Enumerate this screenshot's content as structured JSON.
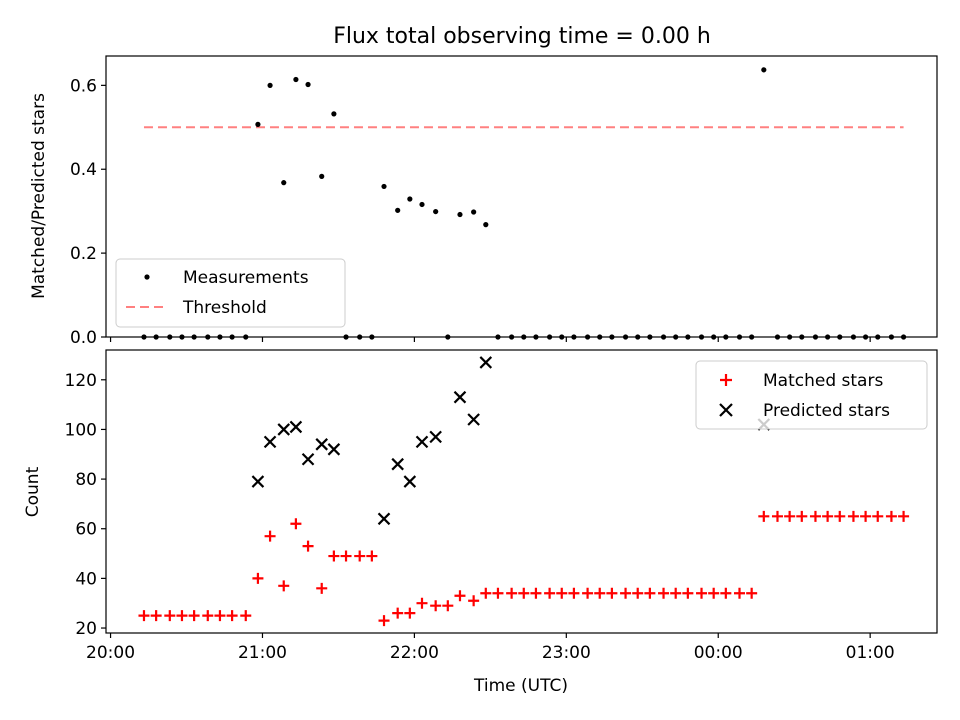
{
  "figure": {
    "title": "Flux total observing time = 0.00 h",
    "xlabel": "Time (UTC)",
    "x_ticks": [
      "20:00",
      "21:00",
      "22:00",
      "23:00",
      "00:00",
      "01:00"
    ],
    "x_tick_hours": [
      20,
      21,
      22,
      23,
      24,
      25
    ]
  },
  "chart_data": [
    {
      "type": "scatter",
      "title": "Flux total observing time = 0.00 h",
      "xlabel": "",
      "ylabel": "Matched/Predicted stars",
      "xlim_hours": [
        19.97,
        25.44
      ],
      "ylim": [
        0,
        0.67
      ],
      "y_ticks": [
        0.0,
        0.2,
        0.4,
        0.6
      ],
      "y_tick_labels": [
        "0.0",
        "0.2",
        "0.4",
        "0.6"
      ],
      "legend_position": "lower-left",
      "threshold": {
        "name": "Threshold",
        "value": 0.5,
        "color": "#ff8080",
        "x_range_hours": [
          20.22,
          25.22
        ]
      },
      "series": [
        {
          "name": "Measurements",
          "color": "#000000",
          "points": [
            [
              20.22,
              0
            ],
            [
              20.3,
              0
            ],
            [
              20.39,
              0
            ],
            [
              20.47,
              0
            ],
            [
              20.55,
              0
            ],
            [
              20.64,
              0
            ],
            [
              20.72,
              0
            ],
            [
              20.8,
              0
            ],
            [
              20.89,
              0
            ],
            [
              20.97,
              0.507
            ],
            [
              21.05,
              0.6
            ],
            [
              21.14,
              0.368
            ],
            [
              21.22,
              0.614
            ],
            [
              21.3,
              0.602
            ],
            [
              21.39,
              0.383
            ],
            [
              21.47,
              0.532
            ],
            [
              21.55,
              0
            ],
            [
              21.64,
              0
            ],
            [
              21.72,
              0
            ],
            [
              21.8,
              0.359
            ],
            [
              21.89,
              0.302
            ],
            [
              21.97,
              0.329
            ],
            [
              22.05,
              0.316
            ],
            [
              22.14,
              0.299
            ],
            [
              22.22,
              0
            ],
            [
              22.3,
              0.292
            ],
            [
              22.39,
              0.298
            ],
            [
              22.47,
              0.268
            ],
            [
              22.55,
              0
            ],
            [
              22.64,
              0
            ],
            [
              22.72,
              0
            ],
            [
              22.8,
              0
            ],
            [
              22.89,
              0
            ],
            [
              22.97,
              0
            ],
            [
              23.05,
              0
            ],
            [
              23.14,
              0
            ],
            [
              23.22,
              0
            ],
            [
              23.3,
              0
            ],
            [
              23.39,
              0
            ],
            [
              23.47,
              0
            ],
            [
              23.55,
              0
            ],
            [
              23.64,
              0
            ],
            [
              23.72,
              0
            ],
            [
              23.8,
              0
            ],
            [
              23.89,
              0
            ],
            [
              23.97,
              0
            ],
            [
              24.05,
              0
            ],
            [
              24.14,
              0
            ],
            [
              24.22,
              0
            ],
            [
              24.3,
              0.637
            ],
            [
              24.39,
              0
            ],
            [
              24.47,
              0
            ],
            [
              24.55,
              0
            ],
            [
              24.64,
              0
            ],
            [
              24.72,
              0
            ],
            [
              24.8,
              0
            ],
            [
              24.89,
              0
            ],
            [
              24.97,
              0
            ],
            [
              25.05,
              0
            ],
            [
              25.14,
              0
            ],
            [
              25.22,
              0
            ]
          ]
        }
      ]
    },
    {
      "type": "scatter",
      "xlabel": "Time (UTC)",
      "ylabel": "Count",
      "xlim_hours": [
        19.97,
        25.44
      ],
      "ylim": [
        18,
        132
      ],
      "y_ticks": [
        20,
        40,
        60,
        80,
        100,
        120
      ],
      "y_tick_labels": [
        "20",
        "40",
        "60",
        "80",
        "100",
        "120"
      ],
      "legend_position": "upper-right",
      "series": [
        {
          "name": "Matched stars",
          "marker": "+",
          "color": "#ff0000",
          "points": [
            [
              20.22,
              25
            ],
            [
              20.3,
              25
            ],
            [
              20.39,
              25
            ],
            [
              20.47,
              25
            ],
            [
              20.55,
              25
            ],
            [
              20.64,
              25
            ],
            [
              20.72,
              25
            ],
            [
              20.8,
              25
            ],
            [
              20.89,
              25
            ],
            [
              20.97,
              40
            ],
            [
              21.05,
              57
            ],
            [
              21.14,
              37
            ],
            [
              21.22,
              62
            ],
            [
              21.3,
              53
            ],
            [
              21.39,
              36
            ],
            [
              21.47,
              49
            ],
            [
              21.55,
              49
            ],
            [
              21.64,
              49
            ],
            [
              21.72,
              49
            ],
            [
              21.8,
              23
            ],
            [
              21.89,
              26
            ],
            [
              21.97,
              26
            ],
            [
              22.05,
              30
            ],
            [
              22.14,
              29
            ],
            [
              22.22,
              29
            ],
            [
              22.3,
              33
            ],
            [
              22.39,
              31
            ],
            [
              22.47,
              34
            ],
            [
              22.55,
              34
            ],
            [
              22.64,
              34
            ],
            [
              22.72,
              34
            ],
            [
              22.8,
              34
            ],
            [
              22.89,
              34
            ],
            [
              22.97,
              34
            ],
            [
              23.05,
              34
            ],
            [
              23.14,
              34
            ],
            [
              23.22,
              34
            ],
            [
              23.3,
              34
            ],
            [
              23.39,
              34
            ],
            [
              23.47,
              34
            ],
            [
              23.55,
              34
            ],
            [
              23.64,
              34
            ],
            [
              23.72,
              34
            ],
            [
              23.8,
              34
            ],
            [
              23.89,
              34
            ],
            [
              23.97,
              34
            ],
            [
              24.05,
              34
            ],
            [
              24.14,
              34
            ],
            [
              24.22,
              34
            ],
            [
              24.3,
              65
            ],
            [
              24.39,
              65
            ],
            [
              24.47,
              65
            ],
            [
              24.55,
              65
            ],
            [
              24.64,
              65
            ],
            [
              24.72,
              65
            ],
            [
              24.8,
              65
            ],
            [
              24.89,
              65
            ],
            [
              24.97,
              65
            ],
            [
              25.05,
              65
            ],
            [
              25.14,
              65
            ],
            [
              25.22,
              65
            ]
          ]
        },
        {
          "name": "Predicted stars",
          "marker": "x",
          "color": "#000000",
          "points": [
            [
              20.97,
              79
            ],
            [
              21.05,
              95
            ],
            [
              21.14,
              100
            ],
            [
              21.22,
              101
            ],
            [
              21.3,
              88
            ],
            [
              21.39,
              94
            ],
            [
              21.47,
              92
            ],
            [
              21.8,
              64
            ],
            [
              21.89,
              86
            ],
            [
              21.97,
              79
            ],
            [
              22.05,
              95
            ],
            [
              22.14,
              97
            ],
            [
              22.3,
              113
            ],
            [
              22.39,
              104
            ],
            [
              22.47,
              127
            ],
            [
              24.3,
              102
            ]
          ]
        }
      ]
    }
  ]
}
